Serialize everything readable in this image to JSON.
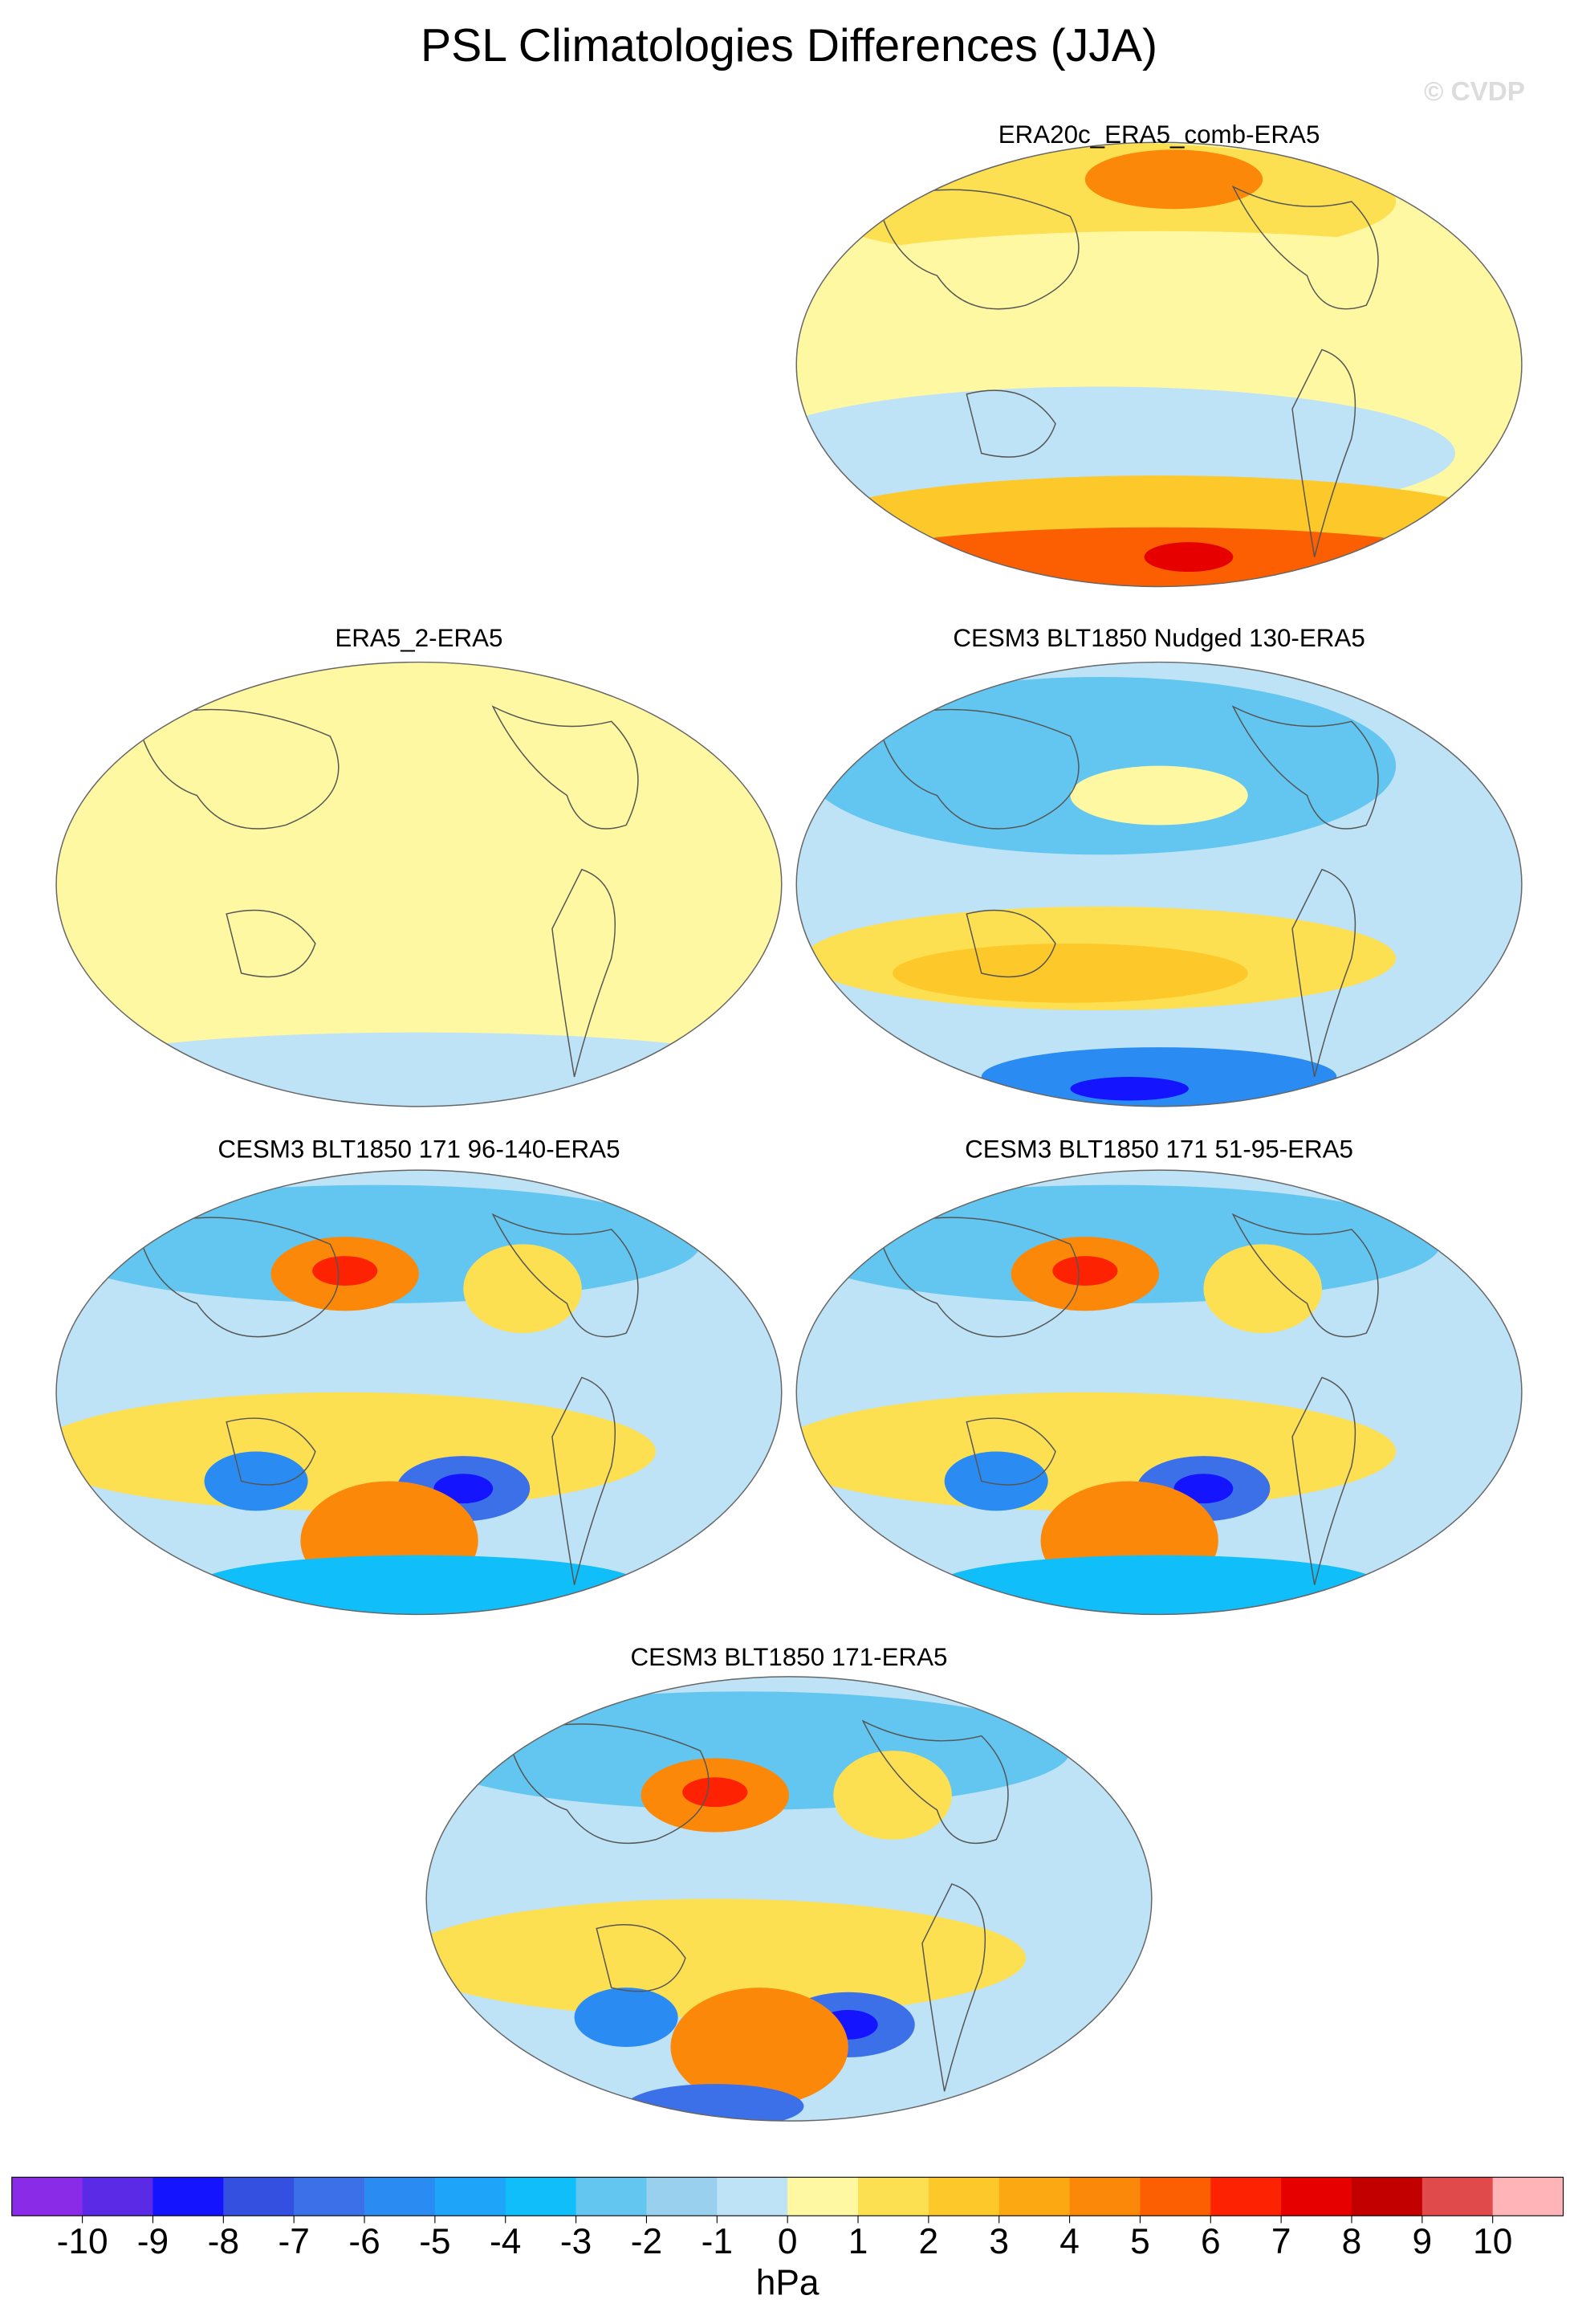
{
  "title": "PSL Climatologies Differences (JJA)",
  "watermark": "© CVDP",
  "panels": [
    {
      "title": "ERA20c_ERA5_comb-ERA5"
    },
    {
      "title": "ERA5_2-ERA5"
    },
    {
      "title": "CESM3 BLT1850 Nudged 130-ERA5"
    },
    {
      "title": "CESM3 BLT1850 171 96-140-ERA5"
    },
    {
      "title": "CESM3 BLT1850 171 51-95-ERA5"
    },
    {
      "title": "CESM3 BLT1850 171-ERA5"
    }
  ],
  "colorbar": {
    "colors": [
      "#8a2be8",
      "#5a2ae6",
      "#1414ff",
      "#3450e0",
      "#3c70e8",
      "#2a8cf2",
      "#1ea4f8",
      "#10befa",
      "#62c6f0",
      "#98d0ee",
      "#bee2f6",
      "#fff8a2",
      "#fde052",
      "#fdc82a",
      "#fca812",
      "#fc880a",
      "#fc5e02",
      "#fc2202",
      "#e60000",
      "#c20000",
      "#e04a4a",
      "#ffb4b8"
    ],
    "ticks": [
      -10,
      -9,
      -8,
      -7,
      -6,
      -5,
      -4,
      -3,
      -2,
      -1,
      0,
      1,
      2,
      3,
      4,
      5,
      6,
      7,
      8,
      9,
      10
    ],
    "label": "hPa"
  }
}
